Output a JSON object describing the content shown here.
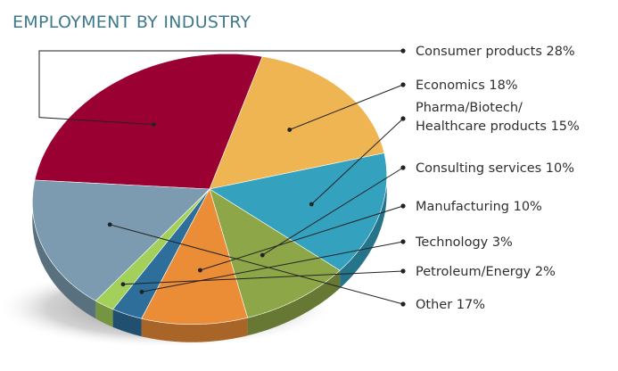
{
  "chart_data": {
    "type": "pie",
    "title": "EMPLOYMENT BY INDUSTRY",
    "categories": [
      "Consumer products",
      "Economics",
      "Pharma/Biotech/ Healthcare products",
      "Consulting services",
      "Manufacturing",
      "Technology",
      "Petroleum/Energy",
      "Other"
    ],
    "values": [
      28,
      18,
      15,
      10,
      10,
      3,
      2,
      17
    ],
    "labels": [
      [
        "Consumer products 28%"
      ],
      [
        "Economics 18%"
      ],
      [
        "Pharma/Biotech/",
        "Healthcare products 15%"
      ],
      [
        "Consulting services 10%"
      ],
      [
        "Manufacturing 10%"
      ],
      [
        "Technology 3%"
      ],
      [
        "Petroleum/Energy 2%"
      ],
      [
        "Other 17%"
      ]
    ],
    "colors": [
      "#9b0033",
      "#efb552",
      "#34a1bf",
      "#8da647",
      "#eb8c37",
      "#2d6e9a",
      "#a3cf5b",
      "#7c9bb0"
    ],
    "legend": "right, leader lines"
  }
}
